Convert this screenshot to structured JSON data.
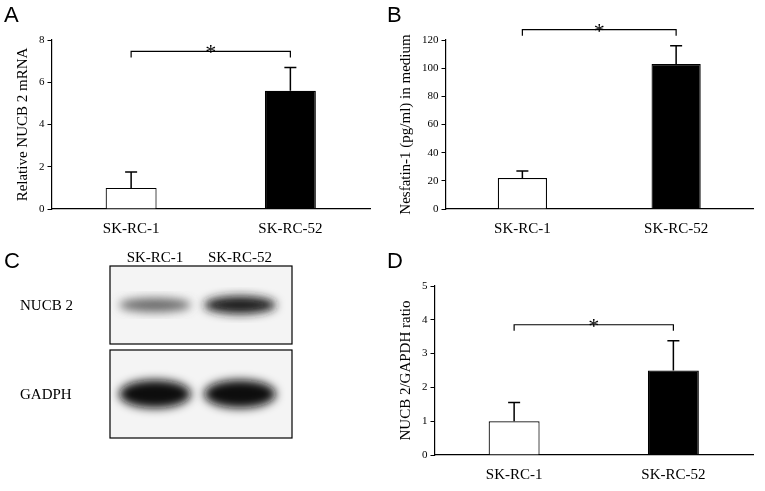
{
  "chart_data": [
    {
      "type": "bar",
      "title": "A",
      "categories": [
        "SK-RC-1",
        "SK-RC-52"
      ],
      "values": [
        1.0,
        5.6
      ],
      "errors": [
        0.75,
        1.1
      ],
      "colors": [
        "#ffffff",
        "#000000"
      ],
      "ylabel": "Relative NUCB 2 mRNA",
      "ylim": [
        0,
        8
      ],
      "yticks": [
        0,
        2,
        4,
        6,
        8
      ],
      "grid": false,
      "annotations": [
        "*"
      ]
    },
    {
      "type": "bar",
      "title": "B",
      "categories": [
        "SK-RC-1",
        "SK-RC-52"
      ],
      "values": [
        22,
        103
      ],
      "errors": [
        5,
        13
      ],
      "colors": [
        "#ffffff",
        "#000000"
      ],
      "ylabel": "Nesfatin-1 (pg/ml) in medium",
      "ylim": [
        0,
        120
      ],
      "yticks": [
        0,
        20,
        40,
        60,
        80,
        100,
        120
      ],
      "grid": false,
      "annotations": [
        "*"
      ]
    },
    {
      "type": "bar",
      "title": "D",
      "categories": [
        "SK-RC-1",
        "SK-RC-52"
      ],
      "values": [
        1.0,
        2.5
      ],
      "errors": [
        0.55,
        0.88
      ],
      "colors": [
        "#ffffff",
        "#000000"
      ],
      "ylabel": "NUCB 2/GAPDH ratio",
      "ylim": [
        0,
        5
      ],
      "yticks": [
        0,
        1,
        2,
        3,
        4,
        5
      ],
      "grid": false,
      "annotations": [
        "*"
      ]
    }
  ],
  "blot": {
    "title": "C",
    "lanes": [
      "SK-RC-1",
      "SK-RC-52"
    ],
    "rows": [
      "NUCB 2",
      "GADPH"
    ]
  }
}
